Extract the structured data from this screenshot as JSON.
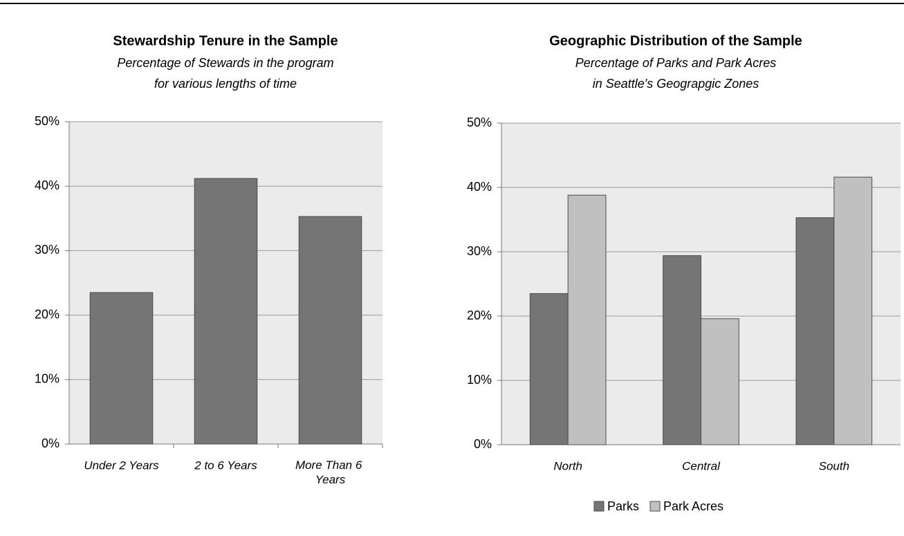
{
  "chart_data": [
    {
      "type": "bar",
      "title": "Stewardship Tenure in the Sample",
      "subtitle": [
        "Percentage of Stewards in the program",
        "for various lengths of time"
      ],
      "categories": [
        "Under 2 Years",
        "2 to 6 Years",
        "More Than 6 Years"
      ],
      "values": [
        23.5,
        41.2,
        35.3
      ],
      "color": "#757575",
      "ylim": [
        0,
        50
      ],
      "yticks": [
        {
          "value": 0,
          "label": "0%"
        },
        {
          "value": 10,
          "label": "10%"
        },
        {
          "value": 20,
          "label": "20%"
        },
        {
          "value": 30,
          "label": "30%"
        },
        {
          "value": 40,
          "label": "40%"
        },
        {
          "value": 50,
          "label": "50%"
        }
      ],
      "grid": true
    },
    {
      "type": "bar",
      "title": "Geographic Distribution of the Sample",
      "subtitle": [
        "Percentage of Parks and Park Acres",
        "in Seattle's Geograpgic Zones"
      ],
      "categories": [
        "North",
        "Central",
        "South"
      ],
      "series": [
        {
          "name": "Parks",
          "color": "#757575",
          "values": [
            23.5,
            29.4,
            35.3
          ]
        },
        {
          "name": "Park Acres",
          "color": "#c0c0c0",
          "values": [
            38.8,
            19.6,
            41.6
          ]
        }
      ],
      "ylim": [
        0,
        50
      ],
      "yticks": [
        {
          "value": 0,
          "label": "0%"
        },
        {
          "value": 10,
          "label": "10%"
        },
        {
          "value": 20,
          "label": "20%"
        },
        {
          "value": 30,
          "label": "30%"
        },
        {
          "value": 40,
          "label": "40%"
        },
        {
          "value": 50,
          "label": "50%"
        }
      ],
      "grid": true,
      "legend": "bottom"
    }
  ]
}
